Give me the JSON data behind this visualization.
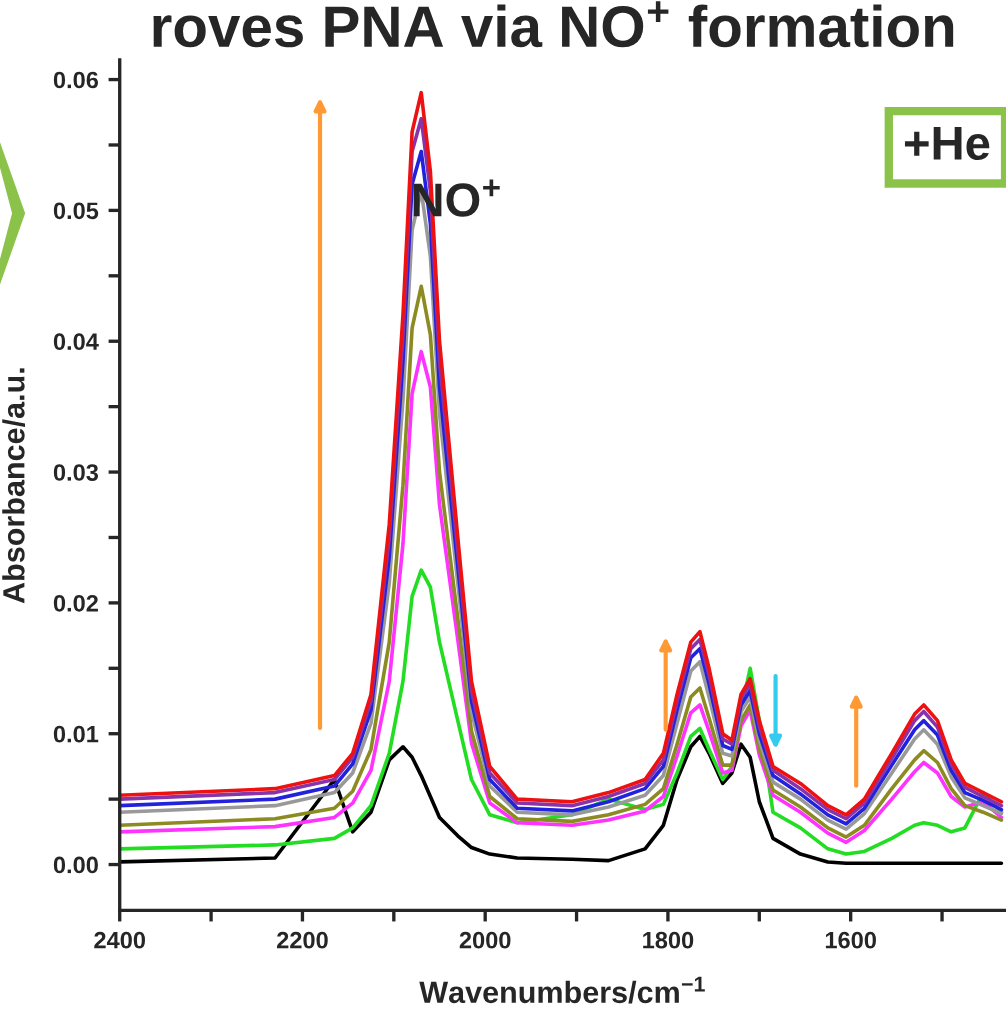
{
  "chart_data": {
    "type": "line",
    "title": "roves PNA via NO$^{+}$ formation",
    "xlabel": "Wavenumbers/cm$^{−1}$",
    "ylabel": "Absorbance/a.u.",
    "annotations": [
      "NO$^{+}$",
      "+He"
    ],
    "x": [
      2400,
      2230,
      2165,
      2145,
      2125,
      2105,
      2090,
      2080,
      2070,
      2060,
      2050,
      2030,
      2015,
      1995,
      1965,
      1905,
      1865,
      1825,
      1805,
      1790,
      1775,
      1765,
      1755,
      1740,
      1730,
      1720,
      1710,
      1700,
      1685,
      1655,
      1625,
      1605,
      1585,
      1555,
      1530,
      1520,
      1505,
      1490,
      1475,
      1455,
      1435
    ],
    "xlim": [
      2400,
      1430
    ],
    "xticks": [
      2400,
      {
        "value": 2300,
        "label": null
      },
      2200,
      {
        "value": 2100,
        "label": null
      },
      2000,
      {
        "value": 1900,
        "label": null
      },
      1800,
      {
        "value": 1700,
        "label": null
      },
      1600,
      {
        "value": 1500,
        "label": null
      }
    ],
    "ylim": [
      -0.0035,
      0.0615
    ],
    "yticks": [
      {
        "value": 0,
        "label": "0.00"
      },
      {
        "value": 0.005,
        "label": null
      },
      {
        "value": 0.01,
        "label": "0.01"
      },
      {
        "value": 0.015,
        "label": null
      },
      {
        "value": 0.02,
        "label": "0.02"
      },
      {
        "value": 0.025,
        "label": null
      },
      {
        "value": 0.03,
        "label": "0.03"
      },
      {
        "value": 0.035,
        "label": null
      },
      {
        "value": 0.04,
        "label": "0.04"
      },
      {
        "value": 0.045,
        "label": null
      },
      {
        "value": 0.05,
        "label": "0.05"
      },
      {
        "value": 0.055,
        "label": null
      },
      {
        "value": 0.06,
        "label": "0.06"
      }
    ],
    "grid": false,
    "legend": false,
    "marker": "none",
    "line_style": "solid",
    "series": [
      {
        "color": "#000000",
        "values": [
          0.0002,
          0.0005,
          0.0065,
          0.0025,
          0.004,
          0.008,
          0.009,
          0.0082,
          0.0068,
          0.0052,
          0.0036,
          0.0022,
          0.0013,
          0.0008,
          0.0005,
          0.0004,
          0.0003,
          0.0012,
          0.003,
          0.0065,
          0.009,
          0.0098,
          0.0085,
          0.0062,
          0.007,
          0.0092,
          0.0082,
          0.0048,
          0.002,
          0.0008,
          0.0002,
          0.0001,
          0.0001,
          0.0001,
          0.0001,
          0.0001,
          0.0001,
          0.0001,
          0.0001,
          0.0001,
          0.0001
        ]
      },
      {
        "color": "#22dd22",
        "values": [
          0.0012,
          0.0015,
          0.002,
          0.0028,
          0.0045,
          0.0085,
          0.014,
          0.0205,
          0.0225,
          0.0212,
          0.017,
          0.011,
          0.0065,
          0.0038,
          0.0032,
          0.0038,
          0.005,
          0.0042,
          0.0046,
          0.007,
          0.0098,
          0.0104,
          0.0088,
          0.0065,
          0.0075,
          0.0118,
          0.015,
          0.011,
          0.004,
          0.0028,
          0.0012,
          0.0008,
          0.001,
          0.002,
          0.003,
          0.0032,
          0.003,
          0.0025,
          0.0028,
          0.0055,
          0.004
        ]
      },
      {
        "color": "#ff33ff",
        "values": [
          0.0025,
          0.0029,
          0.0036,
          0.0047,
          0.0072,
          0.014,
          0.0245,
          0.036,
          0.0392,
          0.0365,
          0.0275,
          0.0172,
          0.0093,
          0.0047,
          0.0032,
          0.003,
          0.0034,
          0.0041,
          0.0052,
          0.0083,
          0.0116,
          0.0122,
          0.0102,
          0.007,
          0.0072,
          0.0106,
          0.0118,
          0.0084,
          0.0053,
          0.004,
          0.0024,
          0.0017,
          0.0026,
          0.005,
          0.0071,
          0.0078,
          0.007,
          0.0052,
          0.0044,
          0.0048,
          0.0036
        ]
      },
      {
        "color": "#8b8b22",
        "values": [
          0.003,
          0.0035,
          0.0043,
          0.0056,
          0.0088,
          0.017,
          0.029,
          0.041,
          0.0442,
          0.0405,
          0.03,
          0.0188,
          0.0102,
          0.0052,
          0.0035,
          0.0033,
          0.0038,
          0.0046,
          0.0058,
          0.0092,
          0.0128,
          0.0135,
          0.0112,
          0.0076,
          0.0076,
          0.011,
          0.0122,
          0.0088,
          0.0057,
          0.0044,
          0.0028,
          0.0021,
          0.003,
          0.0058,
          0.008,
          0.0087,
          0.0078,
          0.0058,
          0.0045,
          0.004,
          0.0034
        ]
      },
      {
        "color": "#999999",
        "values": [
          0.004,
          0.0045,
          0.0055,
          0.007,
          0.0108,
          0.0215,
          0.0355,
          0.0485,
          0.0515,
          0.0465,
          0.0345,
          0.0215,
          0.0117,
          0.006,
          0.004,
          0.0038,
          0.0044,
          0.0053,
          0.0068,
          0.0108,
          0.0148,
          0.0155,
          0.0128,
          0.0085,
          0.0083,
          0.0117,
          0.0128,
          0.0095,
          0.0063,
          0.005,
          0.0034,
          0.0027,
          0.0039,
          0.007,
          0.0096,
          0.0103,
          0.0092,
          0.0067,
          0.0051,
          0.0045,
          0.0039
        ]
      },
      {
        "color": "#2222dd",
        "values": [
          0.0045,
          0.005,
          0.006,
          0.0077,
          0.0118,
          0.0235,
          0.0385,
          0.052,
          0.0545,
          0.049,
          0.0365,
          0.0228,
          0.0125,
          0.0065,
          0.0043,
          0.0041,
          0.0048,
          0.0058,
          0.0075,
          0.0118,
          0.0158,
          0.0165,
          0.0138,
          0.0091,
          0.0088,
          0.0122,
          0.0133,
          0.01,
          0.0068,
          0.0054,
          0.0038,
          0.0031,
          0.0043,
          0.0076,
          0.0103,
          0.011,
          0.0099,
          0.0072,
          0.0055,
          0.0049,
          0.0042
        ]
      },
      {
        "color": "#8833aa",
        "values": [
          0.005,
          0.0055,
          0.0065,
          0.0082,
          0.0125,
          0.025,
          0.0405,
          0.0545,
          0.057,
          0.0515,
          0.0385,
          0.024,
          0.0133,
          0.007,
          0.0047,
          0.0045,
          0.0052,
          0.0062,
          0.008,
          0.0125,
          0.0165,
          0.0172,
          0.0145,
          0.0096,
          0.0092,
          0.0127,
          0.0138,
          0.0106,
          0.0072,
          0.0058,
          0.0042,
          0.0035,
          0.0047,
          0.0081,
          0.011,
          0.0117,
          0.0105,
          0.0077,
          0.0059,
          0.0052,
          0.0045
        ]
      },
      {
        "color": "#ee1111",
        "values": [
          0.0053,
          0.0058,
          0.0068,
          0.0085,
          0.013,
          0.026,
          0.042,
          0.056,
          0.059,
          0.053,
          0.04,
          0.025,
          0.014,
          0.0075,
          0.005,
          0.0048,
          0.0055,
          0.0065,
          0.0085,
          0.013,
          0.017,
          0.0178,
          0.015,
          0.01,
          0.0095,
          0.013,
          0.0142,
          0.011,
          0.0075,
          0.0062,
          0.0045,
          0.0038,
          0.005,
          0.0085,
          0.0115,
          0.0122,
          0.011,
          0.008,
          0.0062,
          0.0055,
          0.0048
        ]
      }
    ]
  }
}
